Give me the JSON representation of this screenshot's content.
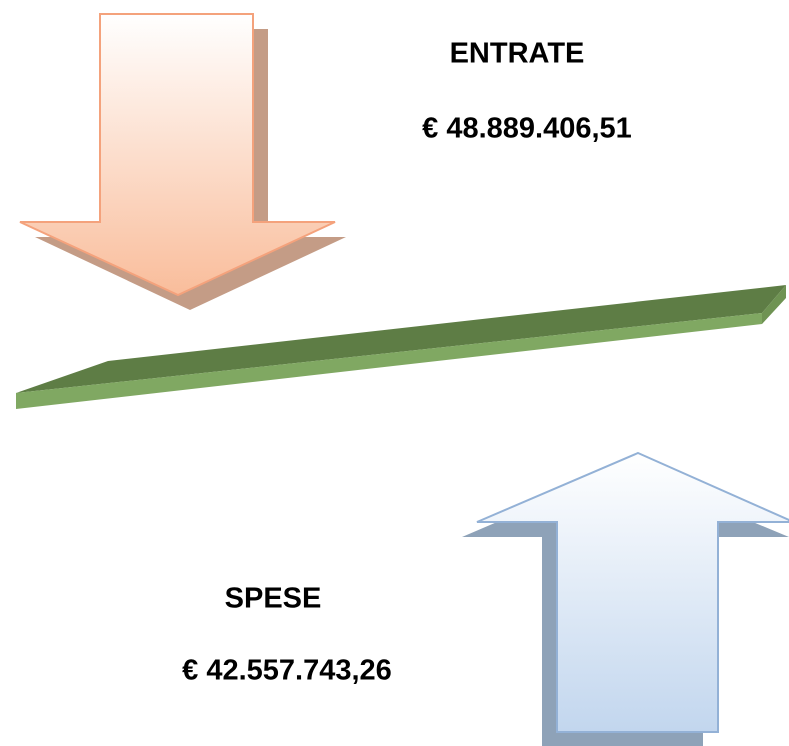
{
  "entrate": {
    "label": "ENTRATE",
    "amount": "€ 48.889.406,51"
  },
  "spese": {
    "label": "SPESE",
    "amount": "€ 42.557.743,26"
  }
}
